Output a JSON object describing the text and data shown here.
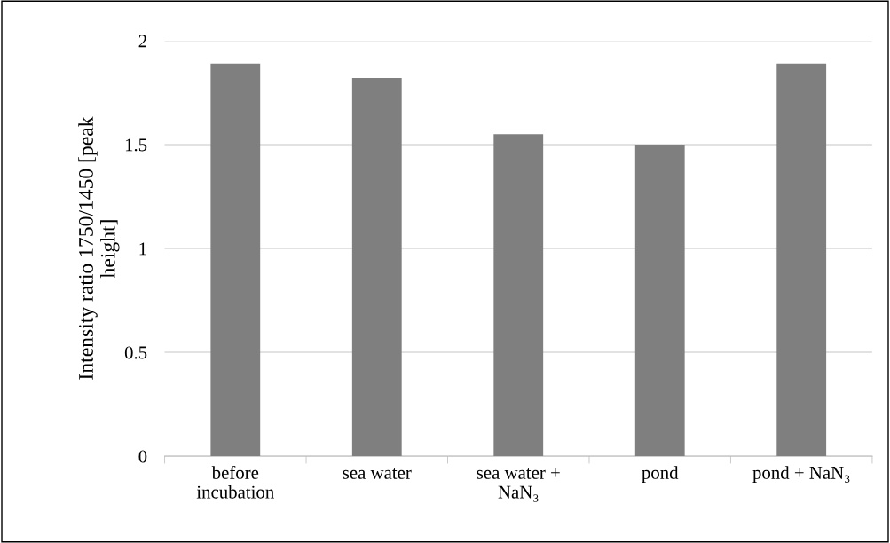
{
  "chart_data": {
    "type": "bar",
    "ylabel": "Intensity ratio 1750/1450 [peak\nheight]",
    "categories": [
      "before\nincubation",
      "sea water",
      "sea water +\nNaN₃",
      "pond",
      "pond + NaN₃"
    ],
    "values": [
      1.89,
      1.82,
      1.55,
      1.5,
      1.89
    ],
    "color": "#7f7f7f",
    "ylim": [
      0,
      2
    ],
    "yticks": [
      0,
      0.5,
      1,
      1.5,
      2
    ],
    "grid": "y"
  }
}
